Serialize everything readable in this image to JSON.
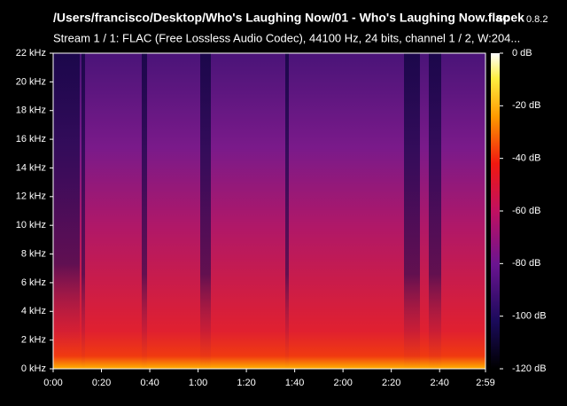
{
  "chart_data": {
    "type": "spectrogram",
    "title": "/Users/francisco/Desktop/Who's Laughing Now/01 - Who's Laughing Now.flac",
    "app": "spek",
    "version": "0.8.2",
    "subtitle": "Stream 1 / 1: FLAC (Free Lossless Audio Codec), 44100 Hz, 24 bits, channel 1 / 2, W:204...",
    "xlim": [
      0,
      179
    ],
    "xticks": [
      {
        "value": 0,
        "label": "0:00"
      },
      {
        "value": 20,
        "label": "0:20"
      },
      {
        "value": 40,
        "label": "0:40"
      },
      {
        "value": 60,
        "label": "1:00"
      },
      {
        "value": 80,
        "label": "1:20"
      },
      {
        "value": 100,
        "label": "1:40"
      },
      {
        "value": 120,
        "label": "2:00"
      },
      {
        "value": 140,
        "label": "2:20"
      },
      {
        "value": 160,
        "label": "2:40"
      },
      {
        "value": 179,
        "label": "2:59"
      }
    ],
    "ylim": [
      0,
      22
    ],
    "yticks": [
      {
        "value": 0,
        "label": "0 kHz"
      },
      {
        "value": 2,
        "label": "2 kHz"
      },
      {
        "value": 4,
        "label": "4 kHz"
      },
      {
        "value": 6,
        "label": "6 kHz"
      },
      {
        "value": 8,
        "label": "8 kHz"
      },
      {
        "value": 10,
        "label": "10 kHz"
      },
      {
        "value": 12,
        "label": "12 kHz"
      },
      {
        "value": 14,
        "label": "14 kHz"
      },
      {
        "value": 16,
        "label": "16 kHz"
      },
      {
        "value": 18,
        "label": "18 kHz"
      },
      {
        "value": 20,
        "label": "20 kHz"
      },
      {
        "value": 22,
        "label": "22 kHz"
      }
    ],
    "zlim": [
      -120,
      0
    ],
    "zticks": [
      {
        "value": 0,
        "label": "0 dB"
      },
      {
        "value": -20,
        "label": "-20 dB"
      },
      {
        "value": -40,
        "label": "-40 dB"
      },
      {
        "value": -60,
        "label": "-60 dB"
      },
      {
        "value": -80,
        "label": "-80 dB"
      },
      {
        "value": -100,
        "label": "-100 dB"
      },
      {
        "value": -120,
        "label": "-120 dB"
      }
    ]
  }
}
